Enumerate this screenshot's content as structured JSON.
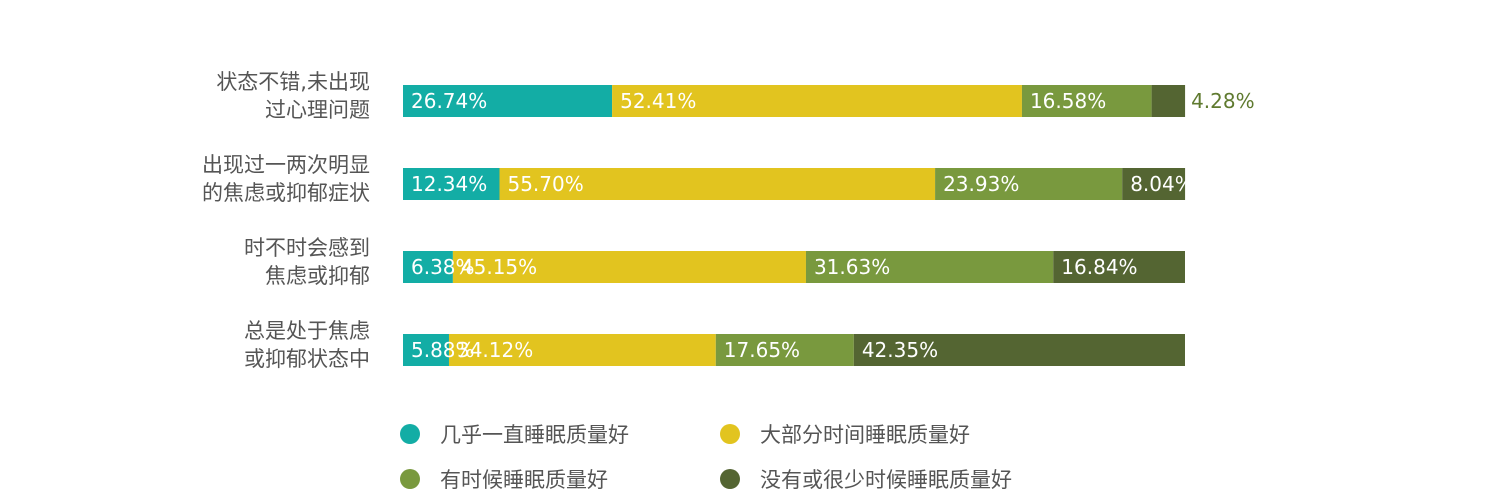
{
  "chart_data": {
    "type": "bar",
    "orientation": "horizontal",
    "stacked": true,
    "title": "",
    "xlabel": "",
    "ylabel": "",
    "xlim": [
      0,
      100
    ],
    "grid": false,
    "legend_position": "bottom",
    "categories": [
      [
        "状态不错,未出现",
        "过心理问题"
      ],
      [
        "出现过一两次明显",
        "的焦虑或抑郁症状"
      ],
      [
        "时不时会感到",
        "焦虑或抑郁"
      ],
      [
        "总是处于焦虑",
        "或抑郁状态中"
      ]
    ],
    "series": [
      {
        "name": "几乎一直睡眠质量好",
        "color": "#13ada5",
        "values": [
          26.74,
          12.34,
          6.38,
          5.88
        ],
        "labels": [
          "26.74%",
          "12.34%",
          "6.38%",
          "5.88%"
        ]
      },
      {
        "name": "大部分时间睡眠质量好",
        "color": "#e2c41f",
        "values": [
          52.41,
          55.7,
          45.15,
          34.12
        ],
        "labels": [
          "52.41%",
          "55.70%",
          "45.15%",
          "34.12%"
        ]
      },
      {
        "name": "有时候睡眠质量好",
        "color": "#79993e",
        "values": [
          16.58,
          23.93,
          31.63,
          17.65
        ],
        "labels": [
          "16.58%",
          "23.93%",
          "31.63%",
          "17.65%"
        ]
      },
      {
        "name": "没有或很少时候睡眠质量好",
        "color": "#546532",
        "values": [
          4.28,
          8.04,
          16.84,
          42.35
        ],
        "labels": [
          "4.28%",
          "8.04%",
          "16.84%",
          "42.35%"
        ]
      }
    ],
    "value_label_color": "#ffffff",
    "outside_label_color": "#5f7a2f"
  }
}
